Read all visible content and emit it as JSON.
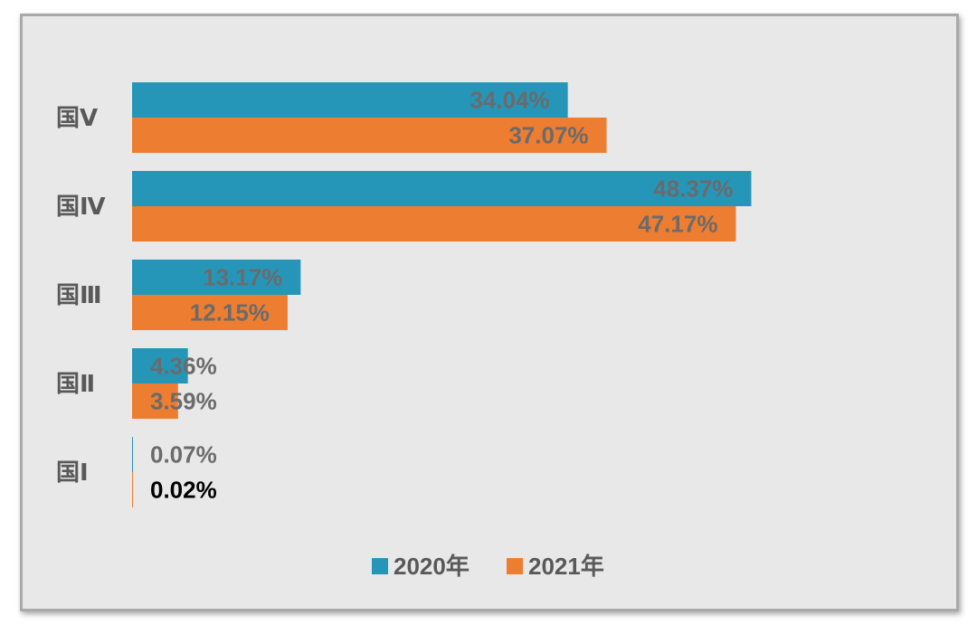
{
  "chart_data": {
    "type": "bar",
    "orientation": "horizontal",
    "categories": [
      "国Ⅴ",
      "国Ⅳ",
      "国Ⅲ",
      "国Ⅱ",
      "国Ⅰ"
    ],
    "series": [
      {
        "name": "2020年",
        "color": "#2596b8",
        "values": [
          34.04,
          48.37,
          13.17,
          4.36,
          0.07
        ],
        "labels": [
          "34.04%",
          "48.37%",
          "13.17%",
          "4.36%",
          "0.07%"
        ]
      },
      {
        "name": "2021年",
        "color": "#ed7d31",
        "values": [
          37.07,
          47.17,
          12.15,
          3.59,
          0.02
        ],
        "labels": [
          "37.07%",
          "47.17%",
          "12.15%",
          "3.59%",
          "0.02%"
        ]
      }
    ],
    "highlight_label": {
      "series": 1,
      "index": 4,
      "color": "#000000"
    },
    "legend_position": "bottom",
    "grid": false
  }
}
